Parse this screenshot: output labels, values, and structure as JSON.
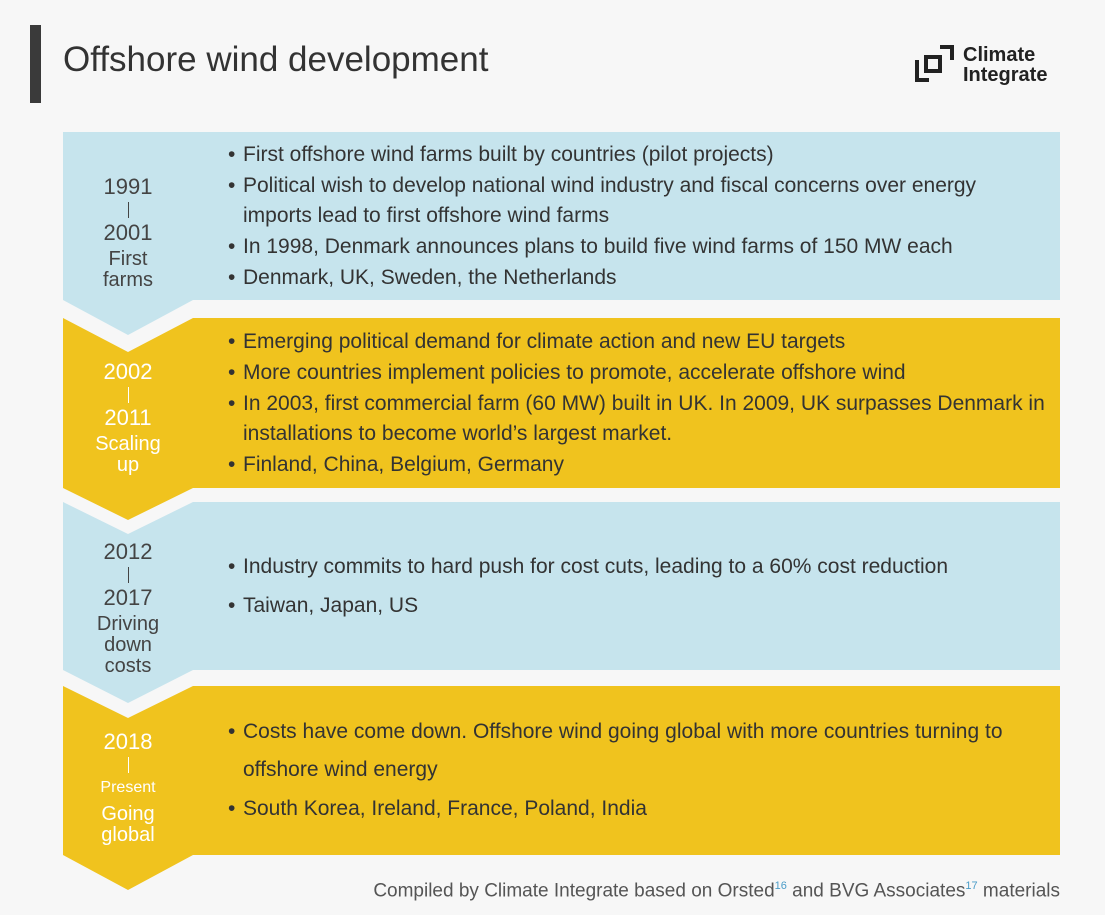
{
  "header": {
    "title": "Offshore wind development",
    "logo": [
      "Climate",
      "Integrate"
    ]
  },
  "stages": [
    {
      "start": "1991",
      "end": "2001",
      "name": "First farms",
      "bullets": [
        "First offshore wind farms built by countries (pilot projects)",
        "Political wish to develop national wind industry and fiscal concerns over energy imports lead to first offshore wind farms",
        "In 1998, Denmark announces plans to build five wind farms of 150 MW each",
        "Denmark, UK, Sweden, the Netherlands"
      ]
    },
    {
      "start": "2002",
      "end": "2011",
      "name": "Scaling up",
      "bullets": [
        "Emerging political demand for climate action and new EU targets",
        "More countries implement policies to promote, accelerate offshore wind",
        "In 2003, first commercial farm (60 MW) built in UK. In 2009, UK surpasses Denmark in installations to become world’s largest market.",
        "Finland, China, Belgium, Germany"
      ]
    },
    {
      "start": "2012",
      "end": "2017",
      "name": "Driving down costs",
      "bullets": [
        "Industry commits to hard push for cost cuts, leading to a 60% cost reduction",
        "Taiwan, Japan, US"
      ]
    },
    {
      "start": "2018",
      "end": "Present",
      "name": "Going global",
      "bullets": [
        "Costs have come down. Offshore wind going global with more countries turning to offshore wind energy",
        "South Korea, Ireland, France, Poland, India"
      ]
    }
  ],
  "footer": {
    "text": "Compiled by Climate Integrate based on Orsted",
    "ref1": "16",
    "text2": "and BVG Associates",
    "ref2": "17",
    "text3": "materials"
  }
}
